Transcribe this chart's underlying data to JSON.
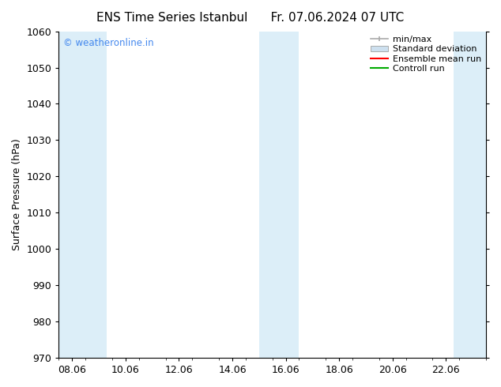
{
  "title_left": "ENS Time Series Istanbul",
  "title_right": "Fr. 07.06.2024 07 UTC",
  "ylabel": "Surface Pressure (hPa)",
  "ylim": [
    970,
    1060
  ],
  "yticks": [
    970,
    980,
    990,
    1000,
    1010,
    1020,
    1030,
    1040,
    1050,
    1060
  ],
  "xmin": 7.5,
  "xmax": 23.5,
  "xtick_labels": [
    "08.06",
    "10.06",
    "12.06",
    "14.06",
    "16.06",
    "18.06",
    "20.06",
    "22.06"
  ],
  "xtick_positions": [
    8,
    10,
    12,
    14,
    16,
    18,
    20,
    22
  ],
  "watermark": "© weatheronline.in",
  "watermark_color": "#4488ee",
  "bg_color": "#ffffff",
  "shaded_bands": [
    {
      "x_start": 7.5,
      "x_end": 9.3
    },
    {
      "x_start": 15.0,
      "x_end": 16.5
    },
    {
      "x_start": 22.3,
      "x_end": 23.5
    }
  ],
  "shaded_color": "#dceef8",
  "legend_color_minmax": "#aaaaaa",
  "legend_color_std": "#cde0ef",
  "legend_color_ens": "#ff0000",
  "legend_color_ctrl": "#00aa00",
  "title_fontsize": 11,
  "axis_fontsize": 9,
  "tick_fontsize": 9,
  "legend_fontsize": 8
}
